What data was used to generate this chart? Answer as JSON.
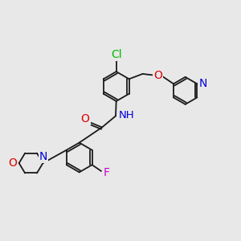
{
  "bg_color": "#e8e8e8",
  "bond_color": "#1a1a1a",
  "atoms": {
    "Cl": {
      "color": "#00bb00"
    },
    "N": {
      "color": "#0000dd"
    },
    "O": {
      "color": "#dd0000"
    },
    "F": {
      "color": "#cc00cc"
    },
    "H": {
      "color": "#007777"
    }
  },
  "lw": 1.3,
  "r_hex": 0.52,
  "r_py": 0.48
}
